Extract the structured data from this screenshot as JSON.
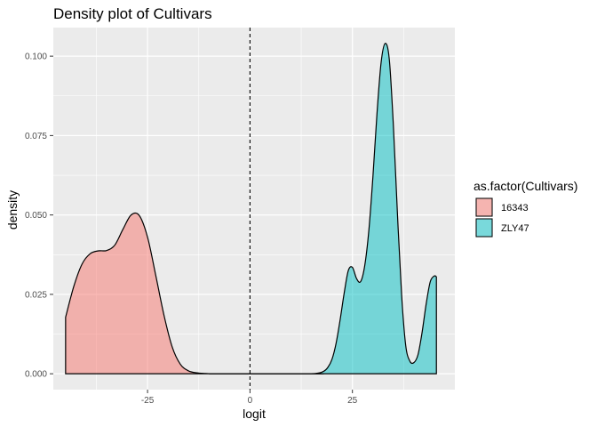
{
  "chart_data": {
    "type": "area",
    "title": "Density plot of Cultivars",
    "xlabel": "logit",
    "ylabel": "density",
    "xlim": [
      -48,
      50
    ],
    "ylim": [
      -0.005,
      0.109
    ],
    "x_ticks": [
      -25,
      0,
      25
    ],
    "x_tick_labels": [
      "-25",
      "0",
      "25"
    ],
    "y_ticks": [
      0.0,
      0.025,
      0.05,
      0.075,
      0.1
    ],
    "y_tick_labels": [
      "0.000",
      "0.025",
      "0.050",
      "0.075",
      "0.100"
    ],
    "vline": {
      "x": 0,
      "style": "dashed",
      "color": "#000000"
    },
    "grid": true,
    "panel_background": "#EBEBEB",
    "legend": {
      "title": "as.factor(Cultivars)",
      "position": "right",
      "entries": [
        "16343",
        "ZLY47"
      ]
    },
    "series": [
      {
        "name": "16343",
        "color": "#F8766D",
        "x": [
          -45,
          -43,
          -41,
          -39,
          -37,
          -35,
          -33,
          -31,
          -29,
          -27,
          -25,
          -23,
          -21,
          -19,
          -17,
          -15,
          -13,
          -11,
          -9,
          -5,
          0,
          5,
          10,
          15,
          18
        ],
        "values": [
          0.0178,
          0.0275,
          0.0345,
          0.0378,
          0.0387,
          0.0388,
          0.0405,
          0.0455,
          0.05,
          0.0498,
          0.043,
          0.031,
          0.0185,
          0.0085,
          0.003,
          0.0009,
          0.0003,
          0.0001,
          0.0,
          0.0,
          0.0,
          0.0,
          0.0,
          0.0,
          0.0
        ]
      },
      {
        "name": "ZLY47",
        "color": "#00BFC4",
        "x": [
          -10,
          0,
          10,
          16,
          18,
          19,
          20,
          21,
          22,
          23,
          24,
          25,
          26,
          27,
          28,
          29,
          30,
          31,
          32,
          33,
          34,
          35,
          36,
          37,
          38,
          39,
          40,
          41,
          42,
          43,
          44,
          45,
          45.5
        ],
        "values": [
          0.0,
          0.0,
          0.0,
          0.0001,
          0.0008,
          0.002,
          0.0045,
          0.0095,
          0.017,
          0.0255,
          0.0325,
          0.0335,
          0.03,
          0.029,
          0.034,
          0.045,
          0.062,
          0.082,
          0.098,
          0.104,
          0.099,
          0.078,
          0.05,
          0.025,
          0.009,
          0.004,
          0.0035,
          0.006,
          0.013,
          0.022,
          0.029,
          0.0308,
          0.0305
        ]
      }
    ]
  }
}
